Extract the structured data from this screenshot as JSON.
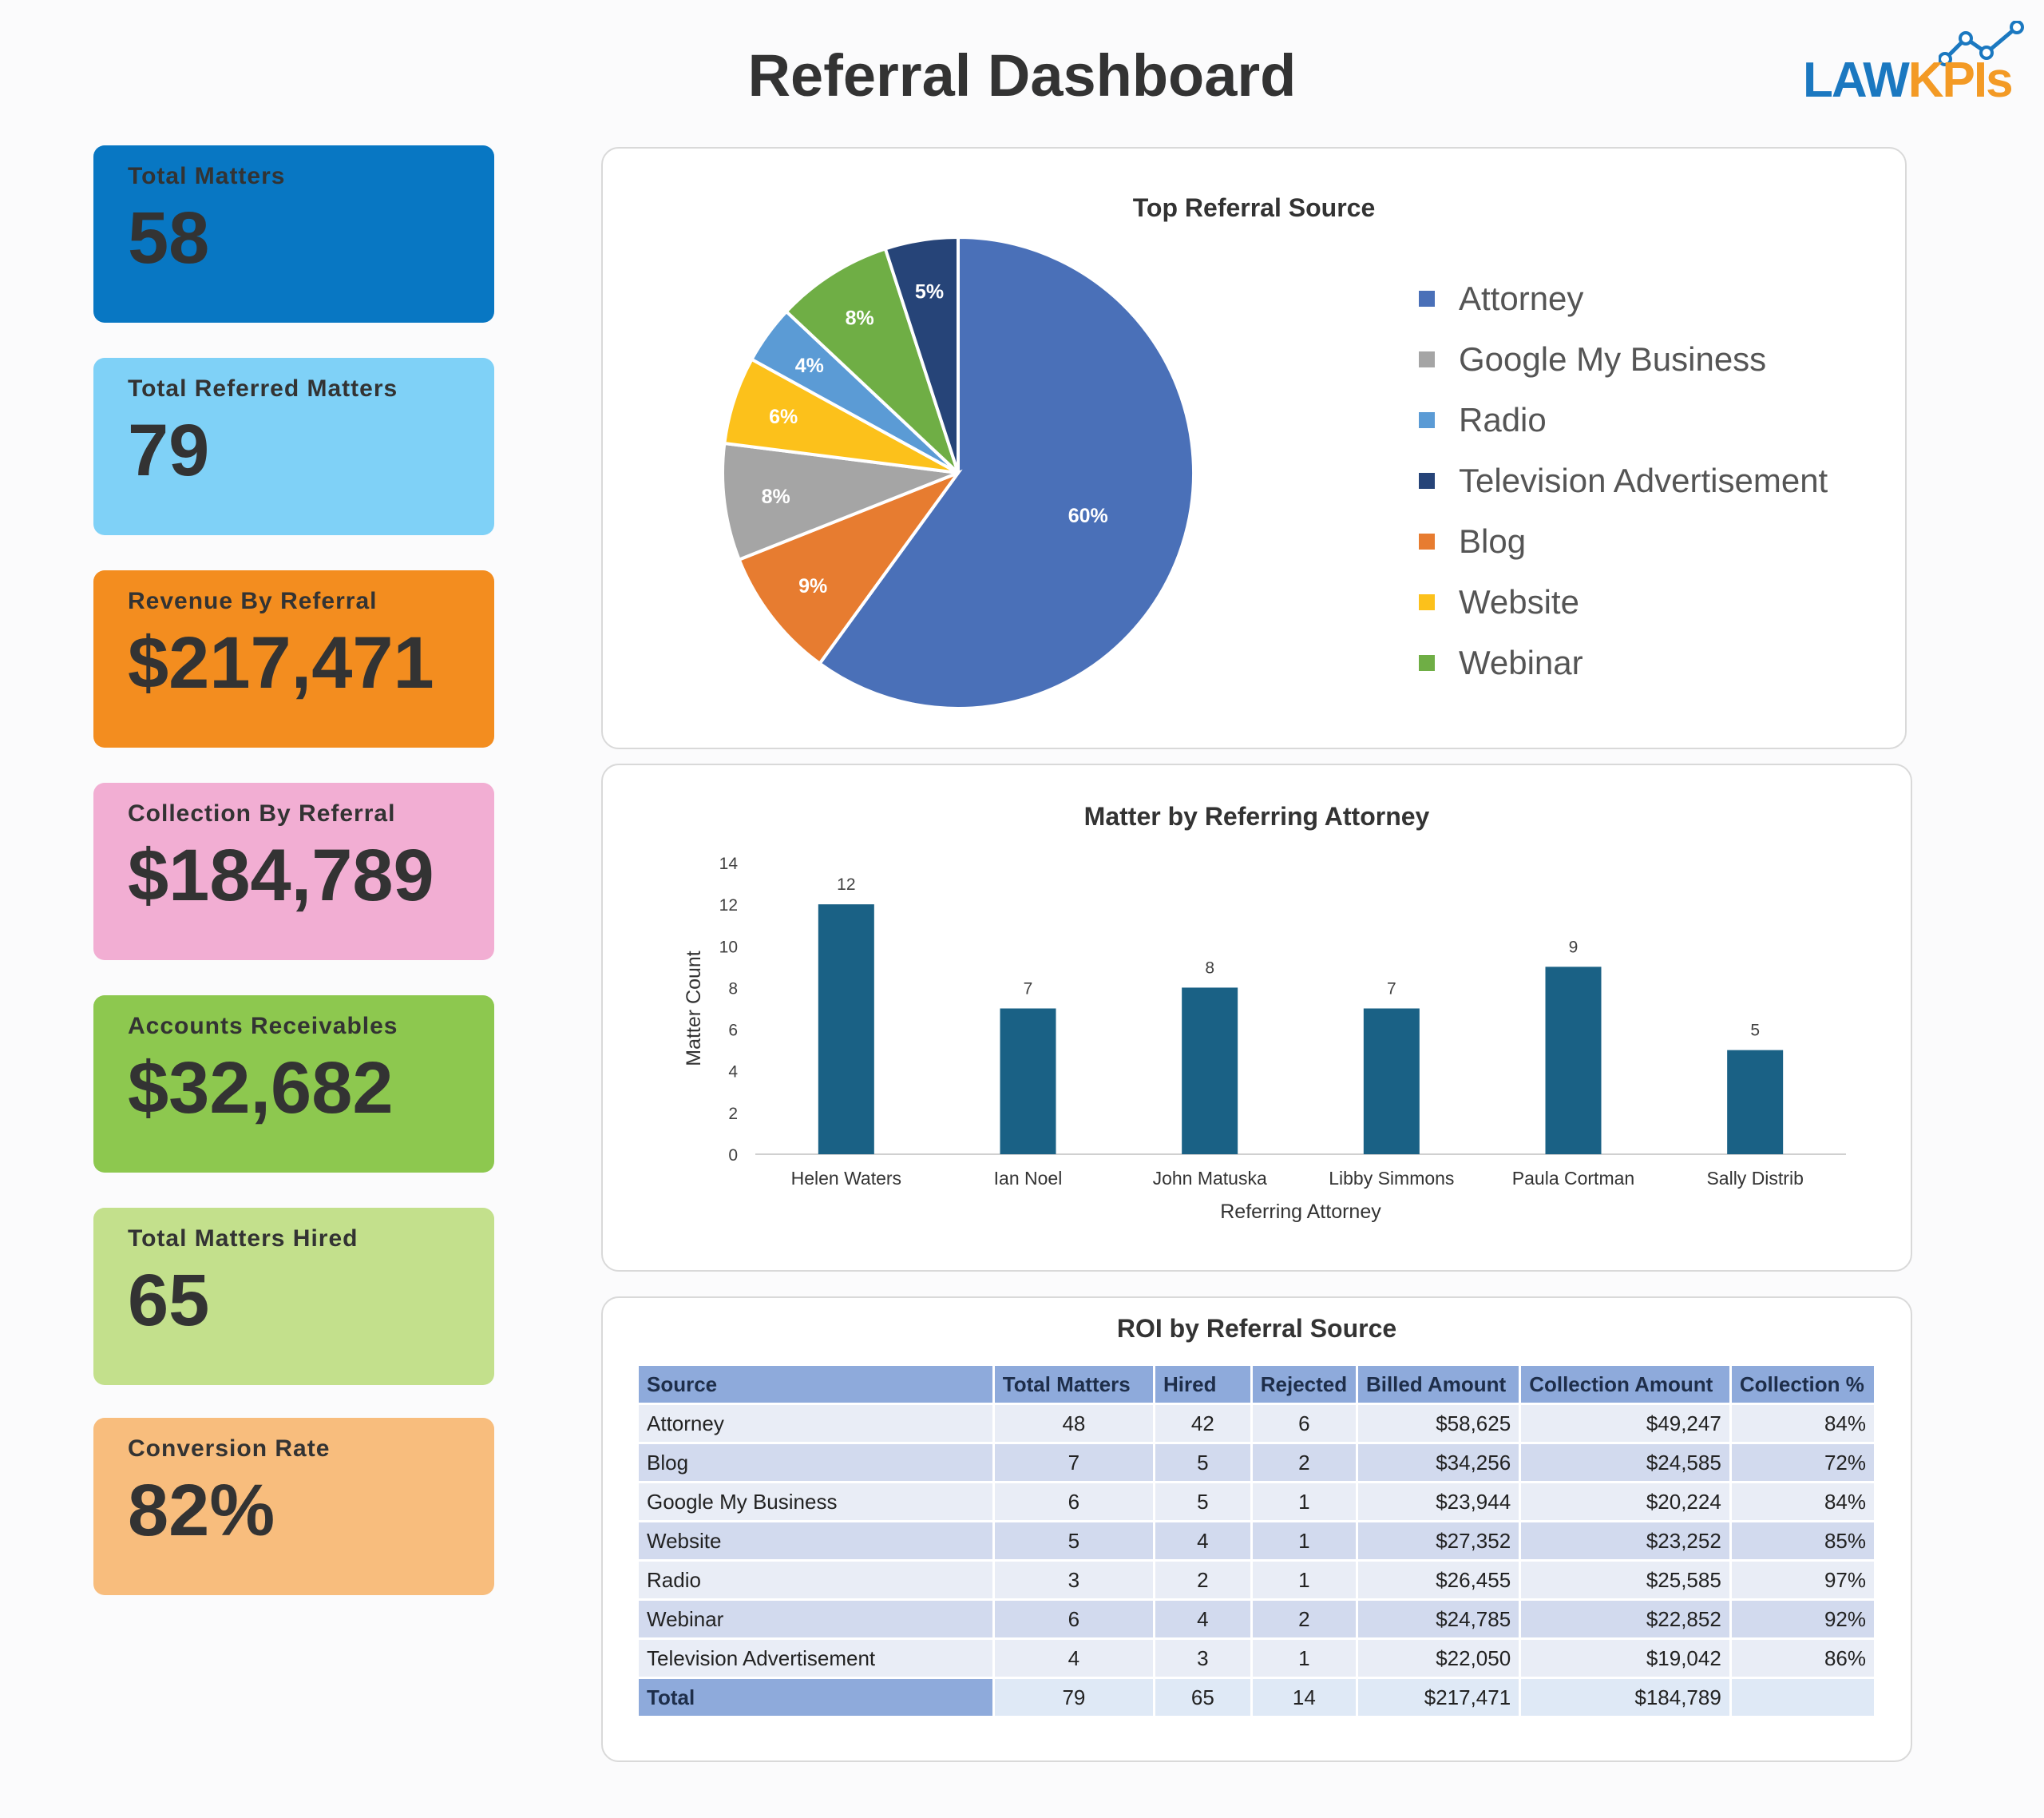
{
  "header": {
    "title": "Referral Dashboard",
    "logo": {
      "part1": "LAW",
      "part2": "KPIs"
    }
  },
  "kpis": [
    {
      "label": "Total Matters",
      "value": "58",
      "color": "#0877c3"
    },
    {
      "label": "Total Referred Matters",
      "value": "79",
      "color": "#7fd1f7"
    },
    {
      "label": "Revenue By Referral",
      "value": "$217,471",
      "color": "#f38d1f"
    },
    {
      "label": "Collection By Referral",
      "value": "$184,789",
      "color": "#f2aed3"
    },
    {
      "label": "Accounts Receivables",
      "value": "$32,682",
      "color": "#8dc84f"
    },
    {
      "label": "Total Matters Hired",
      "value": "65",
      "color": "#c3e08c"
    },
    {
      "label": "Conversion Rate",
      "value": "82%",
      "color": "#f8bd7d"
    }
  ],
  "chart_data": [
    {
      "type": "pie",
      "title": "Top Referral Source",
      "legend_position": "right",
      "slices": [
        {
          "label": "Attorney",
          "value": 60,
          "display": "60%",
          "color": "#4a70b8"
        },
        {
          "label": "Blog",
          "value": 9,
          "display": "9%",
          "color": "#e77c30"
        },
        {
          "label": "Google My Business",
          "value": 8,
          "display": "8%",
          "color": "#a5a5a5"
        },
        {
          "label": "Website",
          "value": 6,
          "display": "6%",
          "color": "#fcc11b"
        },
        {
          "label": "Radio",
          "value": 4,
          "display": "4%",
          "color": "#5b9bd5"
        },
        {
          "label": "Webinar",
          "value": 8,
          "display": "8%",
          "color": "#6fae45"
        },
        {
          "label": "Television Advertisement",
          "value": 5,
          "display": "5%",
          "color": "#264478"
        }
      ],
      "legend": [
        "Attorney",
        "Google My Business",
        "Radio",
        "Television Advertisement",
        "Blog",
        "Website",
        "Webinar"
      ]
    },
    {
      "type": "bar",
      "title": "Matter by Referring Attorney",
      "xlabel": "Referring Attorney",
      "ylabel": "Matter Count",
      "ylim": [
        0,
        14
      ],
      "yticks": [
        0,
        2,
        4,
        6,
        8,
        10,
        12,
        14
      ],
      "categories": [
        "Helen Waters",
        "Ian Noel",
        "John Matuska",
        "Libby Simmons",
        "Paula Cortman",
        "Sally Distrib"
      ],
      "values": [
        12,
        7,
        8,
        7,
        9,
        5
      ],
      "color": "#1a6185",
      "grid": false
    },
    {
      "type": "table",
      "title": "ROI by Referral Source",
      "columns": [
        "Source",
        "Total Matters",
        "Hired",
        "Rejected",
        "Billed Amount",
        "Collection Amount",
        "Collection %"
      ],
      "rows": [
        [
          "Attorney",
          "48",
          "42",
          "6",
          "$58,625",
          "$49,247",
          "84%"
        ],
        [
          "Blog",
          "7",
          "5",
          "2",
          "$34,256",
          "$24,585",
          "72%"
        ],
        [
          "Google My Business",
          "6",
          "5",
          "1",
          "$23,944",
          "$20,224",
          "84%"
        ],
        [
          "Website",
          "5",
          "4",
          "1",
          "$27,352",
          "$23,252",
          "85%"
        ],
        [
          "Radio",
          "3",
          "2",
          "1",
          "$26,455",
          "$25,585",
          "97%"
        ],
        [
          "Webinar",
          "6",
          "4",
          "2",
          "$24,785",
          "$22,852",
          "92%"
        ],
        [
          "Television Advertisement",
          "4",
          "3",
          "1",
          "$22,050",
          "$19,042",
          "86%"
        ]
      ],
      "total": [
        "Total",
        "79",
        "65",
        "14",
        "$217,471",
        "$184,789",
        ""
      ]
    }
  ]
}
